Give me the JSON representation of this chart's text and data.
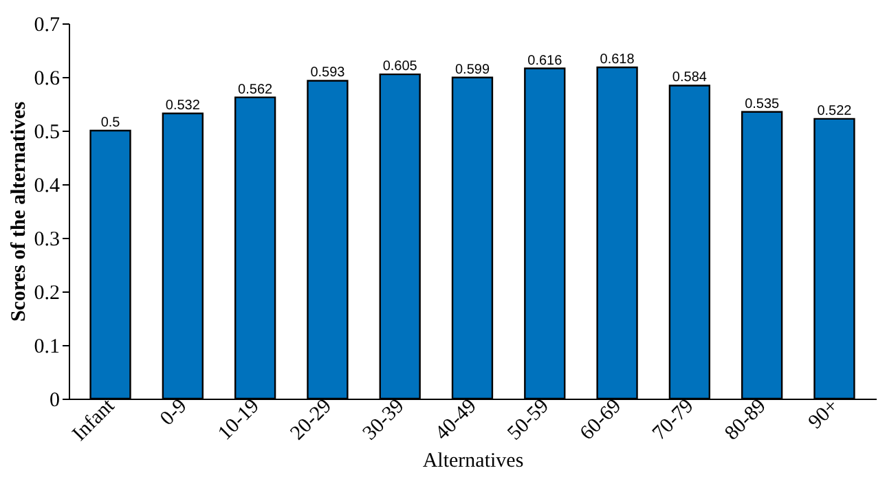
{
  "chart_data": {
    "type": "bar",
    "xlabel": "Alternatives",
    "ylabel": "Scores of the alternatives",
    "categories": [
      "Infant",
      "0-9",
      "10-19",
      "20-29",
      "30-39",
      "40-49",
      "50-59",
      "60-69",
      "70-79",
      "80-89",
      "90+"
    ],
    "values": [
      0.5,
      0.532,
      0.562,
      0.593,
      0.605,
      0.599,
      0.616,
      0.618,
      0.584,
      0.535,
      0.522
    ],
    "color": "#0072bd",
    "ylim": [
      0,
      0.7
    ],
    "yticks": [
      0,
      0.1,
      0.2,
      0.3,
      0.4,
      0.5,
      0.6,
      0.7
    ],
    "data_labels": true,
    "grid": false
  }
}
